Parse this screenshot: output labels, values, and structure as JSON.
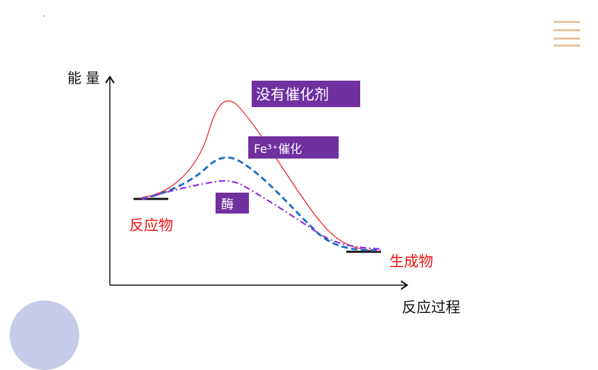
{
  "diagram": {
    "y_axis_label": "能 量",
    "x_axis_label": "反应过程",
    "reactant_label": "反应物",
    "product_label": "生成物",
    "curves": {
      "no_catalyst": {
        "label": "没有催化剂",
        "color": "#ee1111",
        "style": "solid"
      },
      "fe_catalyst": {
        "label": "Fe³⁺催化",
        "color": "#1f6fbf",
        "style": "dashed"
      },
      "enzyme": {
        "label": "酶",
        "color": "#8a2be2",
        "style": "dash-dot"
      }
    },
    "box_color": "#7030a0"
  }
}
